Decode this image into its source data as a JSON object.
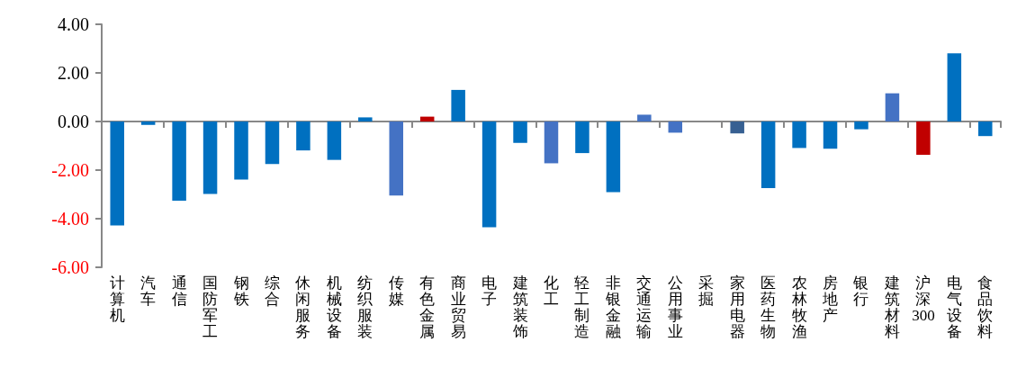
{
  "chart_data": {
    "type": "bar",
    "categories": [
      "计算机",
      "汽车",
      "通信",
      "国防军工",
      "钢铁",
      "综合",
      "休闲服务",
      "机械设备",
      "纺织服装",
      "传媒",
      "有色金属",
      "商业贸易",
      "电子",
      "建筑装饰",
      "化工",
      "轻工制造",
      "非银金融",
      "交通运输",
      "公用事业",
      "采掘",
      "家用电器",
      "医药生物",
      "农林牧渔",
      "房地产",
      "银行",
      "建筑材料",
      "沪深300",
      "电气设备",
      "食品饮料"
    ],
    "values": [
      -4.28,
      -0.14,
      -3.26,
      -2.98,
      -2.39,
      -1.75,
      -1.19,
      -1.58,
      0.17,
      -3.05,
      0.2,
      1.3,
      -4.35,
      -0.88,
      -1.72,
      -1.3,
      -2.91,
      0.28,
      -0.46,
      null,
      -0.49,
      -2.74,
      -1.09,
      -1.12,
      -0.32,
      1.16,
      -1.37,
      2.81,
      -0.6
    ],
    "colors": [
      "#0070c0",
      "#0070c0",
      "#0070c0",
      "#0070c0",
      "#0070c0",
      "#0070c0",
      "#0070c0",
      "#0070c0",
      "#0070c0",
      "#4472c4",
      "#c00000",
      "#0070c0",
      "#0070c0",
      "#0070c0",
      "#4472c4",
      "#0070c0",
      "#0070c0",
      "#4472c4",
      "#4472c4",
      null,
      "#376092",
      "#0070c0",
      "#0070c0",
      "#0070c0",
      "#0070c0",
      "#4472c4",
      "#c00000",
      "#0070c0",
      "#0070c0"
    ],
    "ylim": [
      -6,
      4
    ],
    "yticks": [
      {
        "value": -6,
        "label": "-6.00"
      },
      {
        "value": -4,
        "label": "-4.00"
      },
      {
        "value": -2,
        "label": "-2.00"
      },
      {
        "value": 0,
        "label": "0.00"
      },
      {
        "value": 2,
        "label": "2.00"
      },
      {
        "value": 4,
        "label": "4.00"
      }
    ],
    "data_labels": false
  }
}
